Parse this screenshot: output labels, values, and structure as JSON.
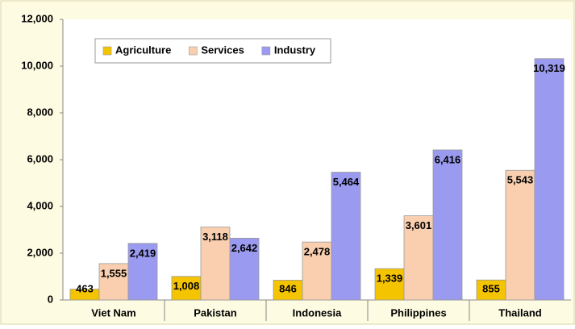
{
  "chart_data": {
    "type": "bar",
    "categories": [
      "Viet Nam",
      "Pakistan",
      "Indonesia",
      "Philippines",
      "Thailand"
    ],
    "series": [
      {
        "name": "Agriculture",
        "color": "#f5c400",
        "values": [
          463,
          1008,
          846,
          1339,
          855
        ],
        "value_labels": [
          "463",
          "1,008",
          "846",
          "1,339",
          "855"
        ]
      },
      {
        "name": "Services",
        "color": "#f9cfb0",
        "values": [
          1555,
          3118,
          2478,
          3601,
          5543
        ],
        "value_labels": [
          "1,555",
          "3,118",
          "2,478",
          "3,601",
          "5,543"
        ]
      },
      {
        "name": "Industry",
        "color": "#9a9af0",
        "values": [
          2419,
          2642,
          5464,
          6416,
          10319
        ],
        "value_labels": [
          "2,419",
          "2,642",
          "5,464",
          "6,416",
          "10,319"
        ]
      }
    ],
    "ylim": [
      0,
      12000
    ],
    "yticks": [
      0,
      {
        "value": 2000,
        "label": "2,000"
      },
      {
        "value": 4000,
        "label": "4,000"
      },
      {
        "value": 6000,
        "label": "6,000"
      },
      {
        "value": 8000,
        "label": "8,000"
      },
      {
        "value": 10000,
        "label": "10,000"
      },
      {
        "value": 12000,
        "label": "12,000"
      }
    ],
    "grid": false
  }
}
